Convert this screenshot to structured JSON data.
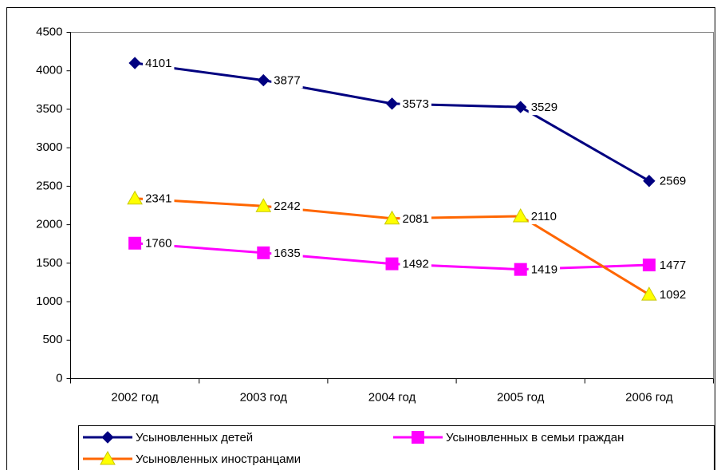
{
  "chart_data": {
    "type": "line",
    "categories": [
      "2002 год",
      "2003 год",
      "2004 год",
      "2005 год",
      "2006 год"
    ],
    "series": [
      {
        "name": "Усыновленных детей",
        "color": "#000080",
        "marker": "diamond",
        "values": [
          4101,
          3877,
          3573,
          3529,
          2569
        ]
      },
      {
        "name": "Усыновленных в семьи граждан",
        "color": "#ff00ff",
        "marker": "square",
        "values": [
          1760,
          1635,
          1492,
          1419,
          1477
        ]
      },
      {
        "name": "Усыновленных иностранцами",
        "color": "#ff6600",
        "marker": "triangle",
        "values": [
          2341,
          2242,
          2081,
          2110,
          1092
        ]
      }
    ],
    "ylim": [
      0,
      4500
    ],
    "yticks": [
      0,
      500,
      1000,
      1500,
      2000,
      2500,
      3000,
      3500,
      4000,
      4500
    ],
    "grid": false,
    "legend": "bottom"
  }
}
